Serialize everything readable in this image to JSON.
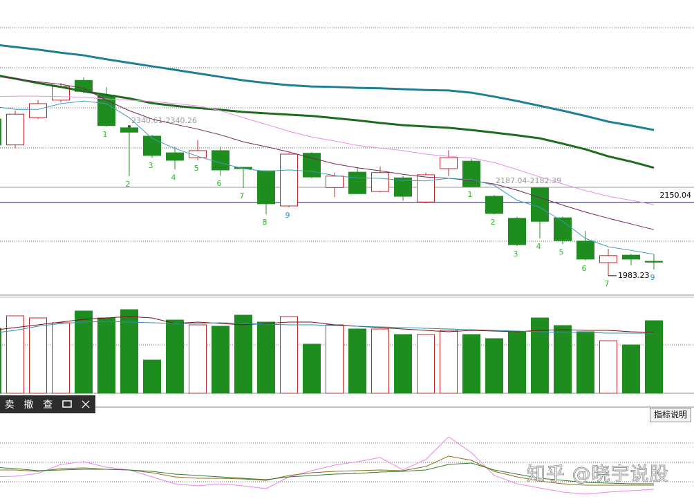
{
  "chart_data": {
    "type": "candlestick",
    "open": [
      2340,
      2281,
      2343,
      2383,
      2428,
      2394,
      2320,
      2301,
      2263,
      2252,
      2268,
      2230,
      2222,
      2142,
      2262,
      2184,
      2219,
      2175,
      2206,
      2151,
      2227,
      2244,
      2164,
      2114,
      2183,
      2115,
      2062,
      2013,
      2030,
      2016
    ],
    "high": [
      2344,
      2359,
      2383,
      2422,
      2435,
      2413,
      2326,
      2304,
      2277,
      2292,
      2277,
      2230,
      2222,
      2262,
      2265,
      2218,
      2230,
      2232,
      2210,
      2218,
      2269,
      2249,
      2167,
      2117,
      2183,
      2118,
      2085,
      2044,
      2033,
      2032
    ],
    "low": [
      2278,
      2273,
      2340,
      2378,
      2399,
      2323,
      2210,
      2252,
      2225,
      2246,
      2211,
      2183,
      2123,
      2139,
      2205,
      2162,
      2169,
      2173,
      2154,
      2148,
      2210,
      2186,
      2123,
      2051,
      2068,
      2055,
      2018,
      1983.23,
      2007,
      1997
    ],
    "close": [
      2281,
      2351,
      2375,
      2414,
      2403,
      2325,
      2310,
      2257,
      2246,
      2268,
      2224,
      2227,
      2147,
      2260,
      2208,
      2210,
      2170,
      2218,
      2164,
      2213,
      2252,
      2186,
      2125,
      2054,
      2107,
      2063,
      2021,
      2029,
      2021,
      2014
    ],
    "up_color": "#c0282a",
    "down_color": "#1e8c1e",
    "ylim": [
      1939,
      2611
    ],
    "ma": [
      {
        "color": "#1f7f95",
        "values": [
          2510,
          2504,
          2498,
          2491,
          2485,
          2476,
          2468,
          2460,
          2452,
          2444,
          2436,
          2428,
          2422,
          2417,
          2414,
          2413,
          2411,
          2410,
          2408,
          2406,
          2405,
          2400,
          2391,
          2381,
          2370,
          2359,
          2347,
          2334,
          2325,
          2315
        ]
      },
      {
        "color": "#1d6b1d",
        "values": [
          2441,
          2432,
          2422,
          2413,
          2403,
          2395,
          2387,
          2376,
          2370,
          2365,
          2361,
          2356,
          2353,
          2350,
          2347,
          2342,
          2337,
          2331,
          2326,
          2323,
          2320,
          2315,
          2309,
          2303,
          2296,
          2284,
          2271,
          2255,
          2243,
          2229
        ]
      },
      {
        "color": "#e58de5",
        "values": [
          2391,
          2392,
          2392,
          2391,
          2389,
          2386,
          2383,
          2380,
          2375,
          2370,
          2359,
          2343,
          2328,
          2312,
          2299,
          2290,
          2280,
          2274,
          2268,
          2260,
          2255,
          2251,
          2241,
          2225,
          2208,
          2192,
          2177,
          2164,
          2155,
          2145
        ]
      },
      {
        "color": "#7a1f5a",
        "values": [
          2438,
          2432,
          2425,
          2419,
          2410,
          2383,
          2359,
          2340,
          2328,
          2317,
          2304,
          2288,
          2277,
          2265,
          2251,
          2238,
          2229,
          2222,
          2214,
          2208,
          2205,
          2200,
          2192,
          2178,
          2161,
          2144,
          2128,
          2114,
          2101,
          2088
        ]
      },
      {
        "color": "#3a9bbf",
        "values": [
          2369,
          2362,
          2362,
          2375,
          2381,
          2375,
          2343,
          2296,
          2273,
          2255,
          2240,
          2227,
          2221,
          2224,
          2221,
          2211,
          2206,
          2205,
          2200,
          2199,
          2205,
          2202,
          2189,
          2155,
          2139,
          2107,
          2068,
          2049,
          2041,
          2032
        ]
      }
    ],
    "price_line": 2150.04,
    "annotations": [
      "2340.61-2340.26",
      "2187.04-2182.39"
    ],
    "sequence": [
      null,
      null,
      null,
      null,
      null,
      1,
      2,
      3,
      4,
      5,
      6,
      7,
      8,
      9,
      null,
      null,
      null,
      null,
      null,
      null,
      null,
      1,
      2,
      3,
      4,
      5,
      6,
      7,
      null,
      9
    ],
    "volume": {
      "ylim": [
        0,
        139
      ],
      "values": [
        94,
        112,
        109,
        102,
        119,
        109,
        121,
        48,
        106,
        99,
        97,
        113,
        103,
        111,
        71,
        99,
        93,
        93,
        85,
        85,
        91,
        85,
        79,
        89,
        109,
        98,
        89,
        76,
        70,
        105
      ],
      "ma": [
        {
          "color": "#7a1010",
          "values": [
            91,
            95,
            99,
            103,
            107,
            109,
            111,
            109,
            101,
            103,
            101,
            99,
            101,
            103,
            103,
            99,
            97,
            95,
            93,
            91,
            89,
            91,
            90,
            89,
            91,
            92,
            91,
            91,
            89,
            88
          ]
        },
        {
          "color": "#2f8fb0",
          "values": [
            87,
            91,
            97,
            101,
            103,
            104,
            103,
            102,
            101,
            101,
            102,
            101,
            100,
            99,
            99,
            98,
            97,
            96,
            95,
            94,
            93,
            92,
            91,
            90,
            89,
            88,
            88,
            87,
            87,
            87
          ]
        }
      ]
    },
    "indicator": {
      "ylim": [
        0,
        132
      ],
      "series": [
        {
          "color": "#ee82ee",
          "values": [
            32,
            33,
            37,
            50,
            54,
            46,
            42,
            32,
            22,
            19,
            22,
            19,
            15,
            32,
            41,
            49,
            54,
            60,
            42,
            57,
            90,
            67,
            34,
            22,
            16,
            10,
            7,
            10,
            12,
            14
          ]
        },
        {
          "color": "#8b6b1a",
          "values": [
            42,
            42,
            40,
            44,
            45,
            43,
            42,
            38,
            32,
            30,
            30,
            29,
            27,
            34,
            38,
            40,
            41,
            42,
            41,
            47,
            62,
            56,
            40,
            32,
            26,
            22,
            20,
            20,
            20,
            20
          ]
        },
        {
          "color": "#2e7d2e",
          "values": [
            46,
            44,
            41,
            42,
            43,
            43,
            42,
            40,
            36,
            34,
            32,
            30,
            28,
            32,
            34,
            36,
            37,
            39,
            40,
            42,
            50,
            52,
            42,
            36,
            30,
            27,
            24,
            23,
            22,
            22
          ]
        }
      ]
    }
  },
  "toolbar": [
    "卖",
    "撤",
    "查"
  ],
  "indicator_button": "指标说明",
  "watermark": "知乎 @晓宇说股"
}
